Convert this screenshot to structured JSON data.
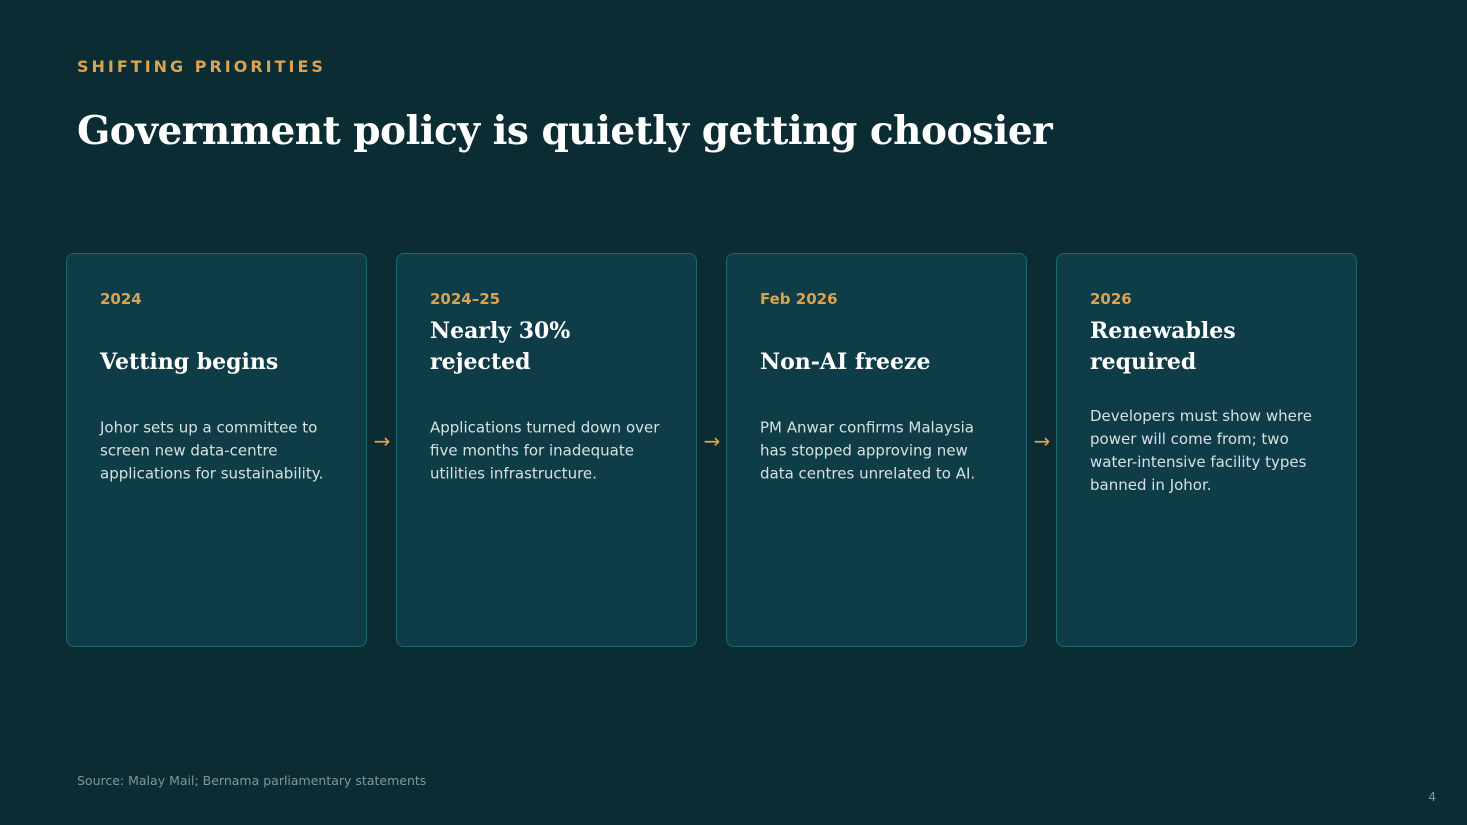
{
  "slide": {
    "eyebrow": "SHIFTING PRIORITIES",
    "title": "Government policy is quietly getting choosier",
    "source": "Source: Malay Mail; Bernama parliamentary statements",
    "page_number": "4"
  },
  "timeline": [
    {
      "date": "2024",
      "title": "Vetting begins",
      "description": "Johor sets up a committee to screen new data-centre applications for sustainability."
    },
    {
      "date": "2024–25",
      "title": "Nearly 30% rejected",
      "description": "Applications turned down over five months for inadequate utilities infrastructure."
    },
    {
      "date": "Feb 2026",
      "title": "Non-AI freeze",
      "description": "PM Anwar confirms Malaysia has stopped approving new data centres unrelated to AI."
    },
    {
      "date": "2026",
      "title": "Renewables required",
      "description": "Developers must show where power will come from; two water-intensive facility types banned in Johor."
    }
  ],
  "connector": {
    "icon": "arrow-right-icon",
    "glyph": "→"
  },
  "colors": {
    "background": "#0c2c33",
    "card": "#0f3d47",
    "card_border": "#1b6772",
    "accent": "#d9a352",
    "text": "#ffffff",
    "muted": "#7f979c"
  }
}
